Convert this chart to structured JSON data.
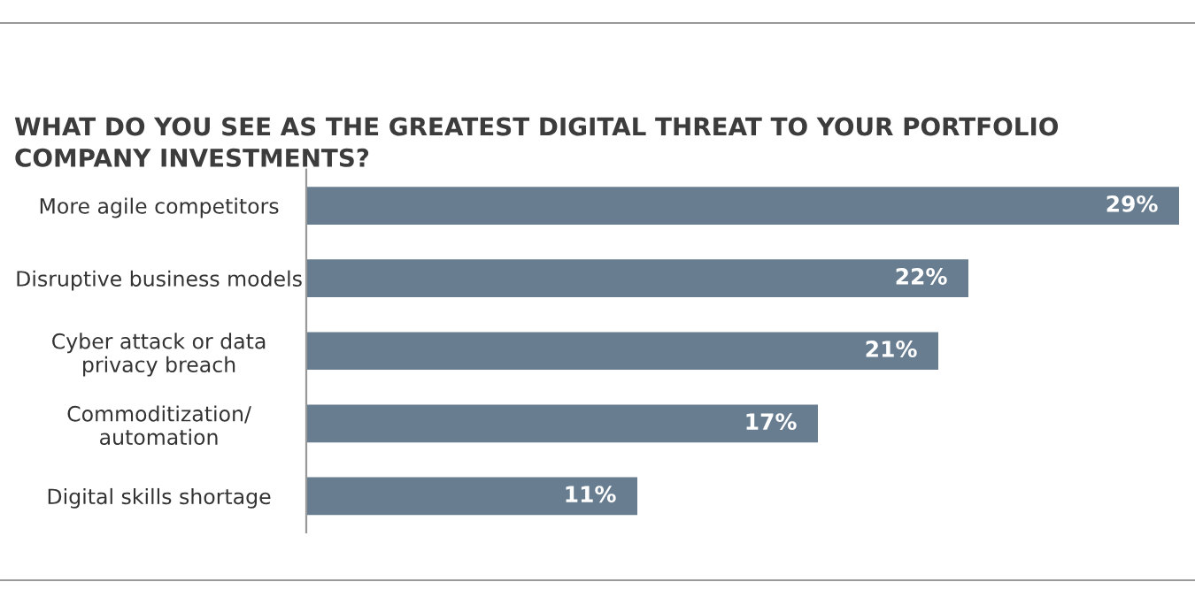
{
  "chart_data": {
    "type": "bar",
    "orientation": "horizontal",
    "title": "WHAT DO YOU SEE AS THE GREATEST DIGITAL THREAT TO YOUR PORTFOLIO\nCOMPANY INVESTMENTS?",
    "categories": [
      "More agile competitors",
      "Disruptive business models",
      "Cyber attack or data\nprivacy breach",
      "Commoditization/\nautomation",
      "Digital skills shortage"
    ],
    "values": [
      29,
      22,
      21,
      17,
      11
    ],
    "value_labels": [
      "29%",
      "22%",
      "21%",
      "17%",
      "11%"
    ],
    "color": "#687d8f",
    "xlim": [
      0,
      29
    ],
    "tick_labels": "y",
    "grid": false,
    "legend": false
  }
}
